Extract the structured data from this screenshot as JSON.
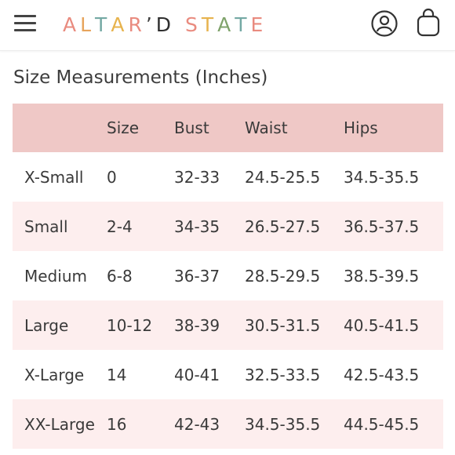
{
  "header": {
    "menu_icon": "hamburger-menu-icon",
    "brand": {
      "letters": [
        "A",
        "L",
        "T",
        "A",
        "R",
        "’",
        "D",
        " ",
        "S",
        "T",
        "A",
        "T",
        "E"
      ],
      "letter_colors": [
        "#e98b7f",
        "#e7a45c",
        "#74a9a4",
        "#e7b34d",
        "#e98b7f",
        "#3f3f3f",
        "#2f2f2f",
        "#ffffff",
        "#e98b7f",
        "#e7b34d",
        "#7fa36b",
        "#74a9a4",
        "#e98b7f"
      ],
      "logo_text": "ALTAR'D STATE"
    },
    "account_icon": "user-account-icon",
    "bag_icon": "shopping-bag-icon"
  },
  "page": {
    "title": "Size Measurements (Inches)"
  },
  "table": {
    "columns": [
      "",
      "Size",
      "Bust",
      "Waist",
      "Hips"
    ],
    "header_color": "#efc8c6",
    "alt_row_color": "#fdeeee",
    "rows": [
      [
        "X-Small",
        "0",
        "32-33",
        "24.5-25.5",
        "34.5-35.5"
      ],
      [
        "Small",
        "2-4",
        "34-35",
        "26.5-27.5",
        "36.5-37.5"
      ],
      [
        "Medium",
        "6-8",
        "36-37",
        "28.5-29.5",
        "38.5-39.5"
      ],
      [
        "Large",
        "10-12",
        "38-39",
        "30.5-31.5",
        "40.5-41.5"
      ],
      [
        "X-Large",
        "14",
        "40-41",
        "32.5-33.5",
        "42.5-43.5"
      ],
      [
        "XX-Large",
        "16",
        "42-43",
        "34.5-35.5",
        "44.5-45.5"
      ]
    ]
  }
}
